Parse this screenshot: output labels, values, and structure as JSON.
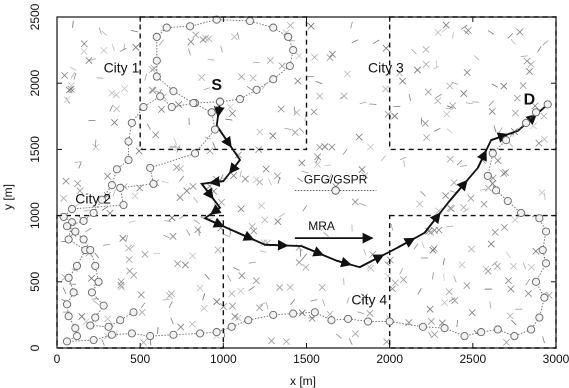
{
  "chart_data": {
    "type": "scatter",
    "xlabel": "x [m]",
    "ylabel": "y [m]",
    "xlim": [
      0,
      3000
    ],
    "ylim": [
      0,
      2500
    ],
    "x_ticks": [
      0,
      500,
      1000,
      1500,
      2000,
      2500,
      3000
    ],
    "y_ticks": [
      0,
      500,
      1000,
      1500,
      2000,
      2500
    ],
    "grid": false,
    "legend_position": "center",
    "legend": [
      {
        "label": "GFG/GSPR",
        "marker": "circle",
        "style": "dotted"
      },
      {
        "label": "MRA",
        "marker": "arrow",
        "style": "solid"
      }
    ],
    "cities": [
      {
        "label": "City 1",
        "x_range": [
          500,
          1500
        ],
        "y_range": [
          1500,
          2500
        ],
        "label_at": [
          280,
          2080
        ]
      },
      {
        "label": "City 2",
        "x_range": [
          0,
          1000
        ],
        "y_range": [
          0,
          1000
        ],
        "label_at": [
          110,
          1090
        ]
      },
      {
        "label": "City 3",
        "x_range": [
          2000,
          3000
        ],
        "y_range": [
          1500,
          2500
        ],
        "label_at": [
          1870,
          2080
        ]
      },
      {
        "label": "City 4",
        "x_range": [
          2000,
          3000
        ],
        "y_range": [
          0,
          1000
        ],
        "label_at": [
          1770,
          330
        ]
      }
    ],
    "source_label": {
      "text": "S",
      "at": [
        960,
        1950
      ]
    },
    "destination_label": {
      "text": "D",
      "at": [
        2840,
        1840
      ]
    },
    "series": [
      {
        "name": "MRA",
        "color": "#111111",
        "points": [
          [
            980,
            1860
          ],
          [
            960,
            1680
          ],
          [
            1100,
            1420
          ],
          [
            1000,
            1260
          ],
          [
            870,
            1240
          ],
          [
            980,
            1060
          ],
          [
            890,
            980
          ],
          [
            1070,
            880
          ],
          [
            1250,
            780
          ],
          [
            1470,
            770
          ],
          [
            1680,
            660
          ],
          [
            1820,
            610
          ],
          [
            2050,
            760
          ],
          [
            2210,
            870
          ],
          [
            2360,
            1110
          ],
          [
            2530,
            1360
          ],
          [
            2610,
            1570
          ],
          [
            2770,
            1640
          ],
          [
            2950,
            1840
          ]
        ]
      },
      {
        "name": "GFG/GSPR",
        "color": "#777777",
        "points": [
          [
            980,
            1860
          ],
          [
            930,
            1780
          ],
          [
            950,
            1650
          ],
          [
            830,
            1470
          ],
          [
            560,
            1360
          ],
          [
            580,
            1240
          ],
          [
            380,
            1210
          ],
          [
            400,
            1080
          ],
          [
            90,
            1050
          ],
          [
            40,
            990
          ],
          [
            90,
            950
          ],
          [
            70,
            820
          ],
          [
            170,
            740
          ],
          [
            120,
            620
          ],
          [
            70,
            530
          ],
          [
            100,
            420
          ],
          [
            60,
            330
          ],
          [
            70,
            240
          ],
          [
            110,
            150
          ],
          [
            120,
            90
          ],
          [
            60,
            50
          ],
          [
            220,
            60
          ],
          [
            330,
            100
          ],
          [
            450,
            110
          ],
          [
            560,
            90
          ],
          [
            700,
            100
          ],
          [
            860,
            110
          ],
          [
            960,
            120
          ],
          [
            1050,
            160
          ],
          [
            1150,
            210
          ],
          [
            1300,
            250
          ],
          [
            1420,
            260
          ],
          [
            1550,
            270
          ],
          [
            1650,
            210
          ],
          [
            1750,
            220
          ],
          [
            1870,
            200
          ],
          [
            2000,
            200
          ],
          [
            2200,
            160
          ],
          [
            2330,
            150
          ],
          [
            2450,
            90
          ],
          [
            2550,
            120
          ],
          [
            2650,
            140
          ],
          [
            2750,
            90
          ],
          [
            2850,
            140
          ],
          [
            2900,
            230
          ],
          [
            2930,
            380
          ],
          [
            2880,
            500
          ],
          [
            2940,
            640
          ],
          [
            2920,
            740
          ],
          [
            2940,
            880
          ],
          [
            2900,
            980
          ],
          [
            2790,
            1020
          ],
          [
            2710,
            1110
          ],
          [
            2640,
            1190
          ],
          [
            2590,
            1300
          ],
          [
            2620,
            1470
          ],
          [
            2700,
            1570
          ],
          [
            2820,
            1700
          ],
          [
            2880,
            1780
          ],
          [
            2950,
            1840
          ]
        ]
      },
      {
        "name": "GFG/GSPR",
        "color": "#777777",
        "points": [
          [
            980,
            1860
          ],
          [
            830,
            1850
          ],
          [
            690,
            1820
          ],
          [
            620,
            1900
          ],
          [
            520,
            1820
          ],
          [
            450,
            1700
          ],
          [
            430,
            1560
          ],
          [
            430,
            1420
          ],
          [
            360,
            1350
          ],
          [
            330,
            1230
          ],
          [
            270,
            1120
          ],
          [
            220,
            1020
          ],
          [
            160,
            960
          ],
          [
            60,
            920
          ],
          [
            110,
            880
          ],
          [
            160,
            820
          ],
          [
            200,
            740
          ],
          [
            230,
            620
          ],
          [
            250,
            500
          ],
          [
            210,
            420
          ],
          [
            280,
            320
          ],
          [
            230,
            230
          ],
          [
            200,
            170
          ],
          [
            310,
            160
          ],
          [
            380,
            210
          ],
          [
            460,
            270
          ]
        ]
      },
      {
        "name": "GFG/GSPR",
        "color": "#777777",
        "points": [
          [
            930,
            1780
          ],
          [
            820,
            1850
          ],
          [
            700,
            1940
          ],
          [
            600,
            2050
          ],
          [
            600,
            2170
          ],
          [
            600,
            2350
          ],
          [
            660,
            2420
          ],
          [
            800,
            2430
          ],
          [
            960,
            2480
          ],
          [
            1160,
            2470
          ],
          [
            1300,
            2420
          ],
          [
            1390,
            2350
          ],
          [
            1420,
            2250
          ],
          [
            1400,
            2130
          ],
          [
            1300,
            2030
          ],
          [
            1200,
            1950
          ],
          [
            1100,
            1880
          ],
          [
            980,
            1860
          ]
        ]
      }
    ]
  }
}
